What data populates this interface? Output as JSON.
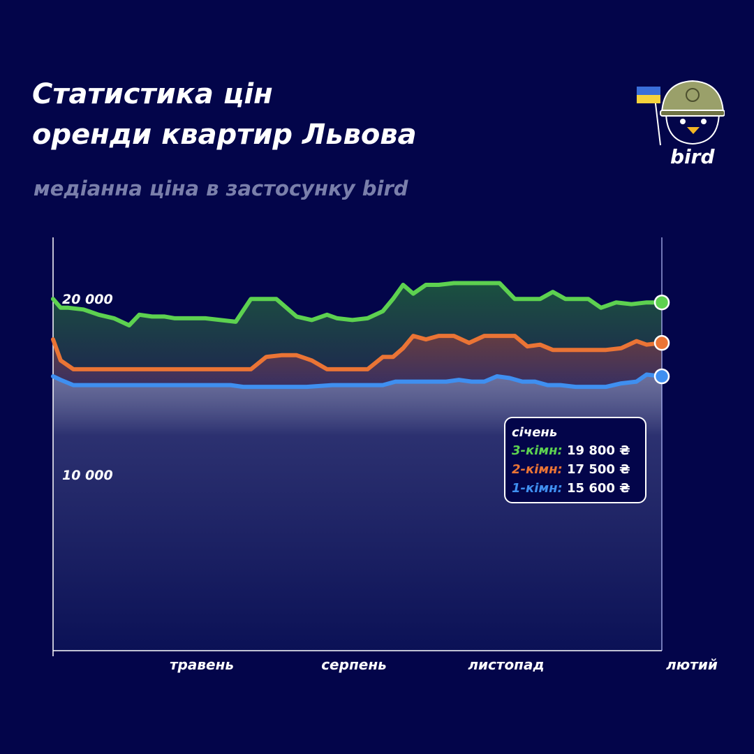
{
  "header": {
    "title_line1": "Статистика цін",
    "title_line2": "оренди квартир Львова",
    "subtitle": "медіанна ціна в застосунку bird"
  },
  "logo": {
    "text": "bird"
  },
  "colors": {
    "background": "#03054a",
    "three_room": "#5dd150",
    "two_room": "#ea7435",
    "one_room": "#3f8ff0"
  },
  "chart_data": {
    "type": "area",
    "title": "Статистика цін оренди квартир Львова",
    "subtitle": "медіанна ціна в застосунку bird",
    "y_tick_labels": [
      "20 000",
      "10 000"
    ],
    "y_ticks": [
      20000,
      10000
    ],
    "ylim": [
      0,
      23500
    ],
    "x_tick_labels": [
      "травень",
      "серпень",
      "листопад",
      "лютий"
    ],
    "x_ticks": [
      3,
      6,
      9,
      12
    ],
    "xlim": [
      0,
      12
    ],
    "grid": false,
    "series": [
      {
        "name": "3-кімн",
        "key": "three_room",
        "x": [
          0,
          0.15,
          0.3,
          0.6,
          0.9,
          1.2,
          1.5,
          1.7,
          1.95,
          2.2,
          2.4,
          2.7,
          3.0,
          3.3,
          3.6,
          3.9,
          4.2,
          4.4,
          4.8,
          5.1,
          5.4,
          5.6,
          5.9,
          6.2,
          6.5,
          6.7,
          6.9,
          7.1,
          7.35,
          7.6,
          7.9,
          8.2,
          8.5,
          8.8,
          9.1,
          9.35,
          9.6,
          9.85,
          10.1,
          10.3,
          10.55,
          10.8,
          11.1,
          11.4,
          11.7,
          12.0
        ],
        "values": [
          20000,
          19500,
          19500,
          19400,
          19100,
          18900,
          18500,
          19100,
          19000,
          19000,
          18900,
          18900,
          18900,
          18800,
          18700,
          20000,
          20000,
          20000,
          19000,
          18800,
          19100,
          18900,
          18800,
          18900,
          19300,
          20000,
          20800,
          20300,
          20800,
          20800,
          20900,
          20900,
          20900,
          20900,
          20000,
          20000,
          20000,
          20400,
          20000,
          20000,
          20000,
          19500,
          19800,
          19700,
          19800,
          19800
        ]
      },
      {
        "name": "2-кімн",
        "key": "two_room",
        "x": [
          0,
          0.15,
          0.4,
          0.7,
          1.0,
          1.5,
          2.0,
          2.5,
          3.0,
          3.6,
          3.9,
          4.2,
          4.5,
          4.8,
          5.1,
          5.4,
          5.7,
          5.9,
          6.2,
          6.5,
          6.7,
          6.9,
          7.1,
          7.35,
          7.6,
          7.9,
          8.2,
          8.5,
          8.8,
          9.1,
          9.35,
          9.6,
          9.85,
          10.1,
          10.3,
          10.6,
          10.9,
          11.2,
          11.5,
          11.7,
          12.0
        ],
        "values": [
          17700,
          16500,
          16000,
          16000,
          16000,
          16000,
          16000,
          16000,
          16000,
          16000,
          16000,
          16700,
          16800,
          16800,
          16500,
          16000,
          16000,
          16000,
          16000,
          16700,
          16700,
          17200,
          17900,
          17700,
          17900,
          17900,
          17500,
          17900,
          17900,
          17900,
          17300,
          17400,
          17100,
          17100,
          17100,
          17100,
          17100,
          17200,
          17600,
          17400,
          17500
        ]
      },
      {
        "name": "1-кімн",
        "key": "one_room",
        "x": [
          0,
          0.15,
          0.4,
          0.7,
          1.0,
          1.5,
          2.0,
          2.5,
          3.0,
          3.5,
          3.75,
          4.0,
          4.5,
          5.0,
          5.5,
          6.0,
          6.5,
          6.75,
          7.0,
          7.5,
          7.75,
          8.0,
          8.25,
          8.5,
          8.75,
          9.0,
          9.25,
          9.5,
          9.75,
          10.0,
          10.3,
          10.6,
          10.9,
          11.2,
          11.5,
          11.7,
          12.0
        ],
        "values": [
          15600,
          15400,
          15100,
          15100,
          15100,
          15100,
          15100,
          15100,
          15100,
          15100,
          15000,
          15000,
          15000,
          15000,
          15100,
          15100,
          15100,
          15300,
          15300,
          15300,
          15300,
          15400,
          15300,
          15300,
          15600,
          15500,
          15300,
          15300,
          15100,
          15100,
          15000,
          15000,
          15000,
          15200,
          15300,
          15700,
          15600
        ]
      }
    ],
    "callout": {
      "month": "січень",
      "rows": [
        {
          "label": "3-кімн:",
          "value": "19 800 ₴"
        },
        {
          "label": "2-кімн:",
          "value": "17 500 ₴"
        },
        {
          "label": "1-кімн:",
          "value": "15 600 ₴"
        }
      ]
    }
  }
}
